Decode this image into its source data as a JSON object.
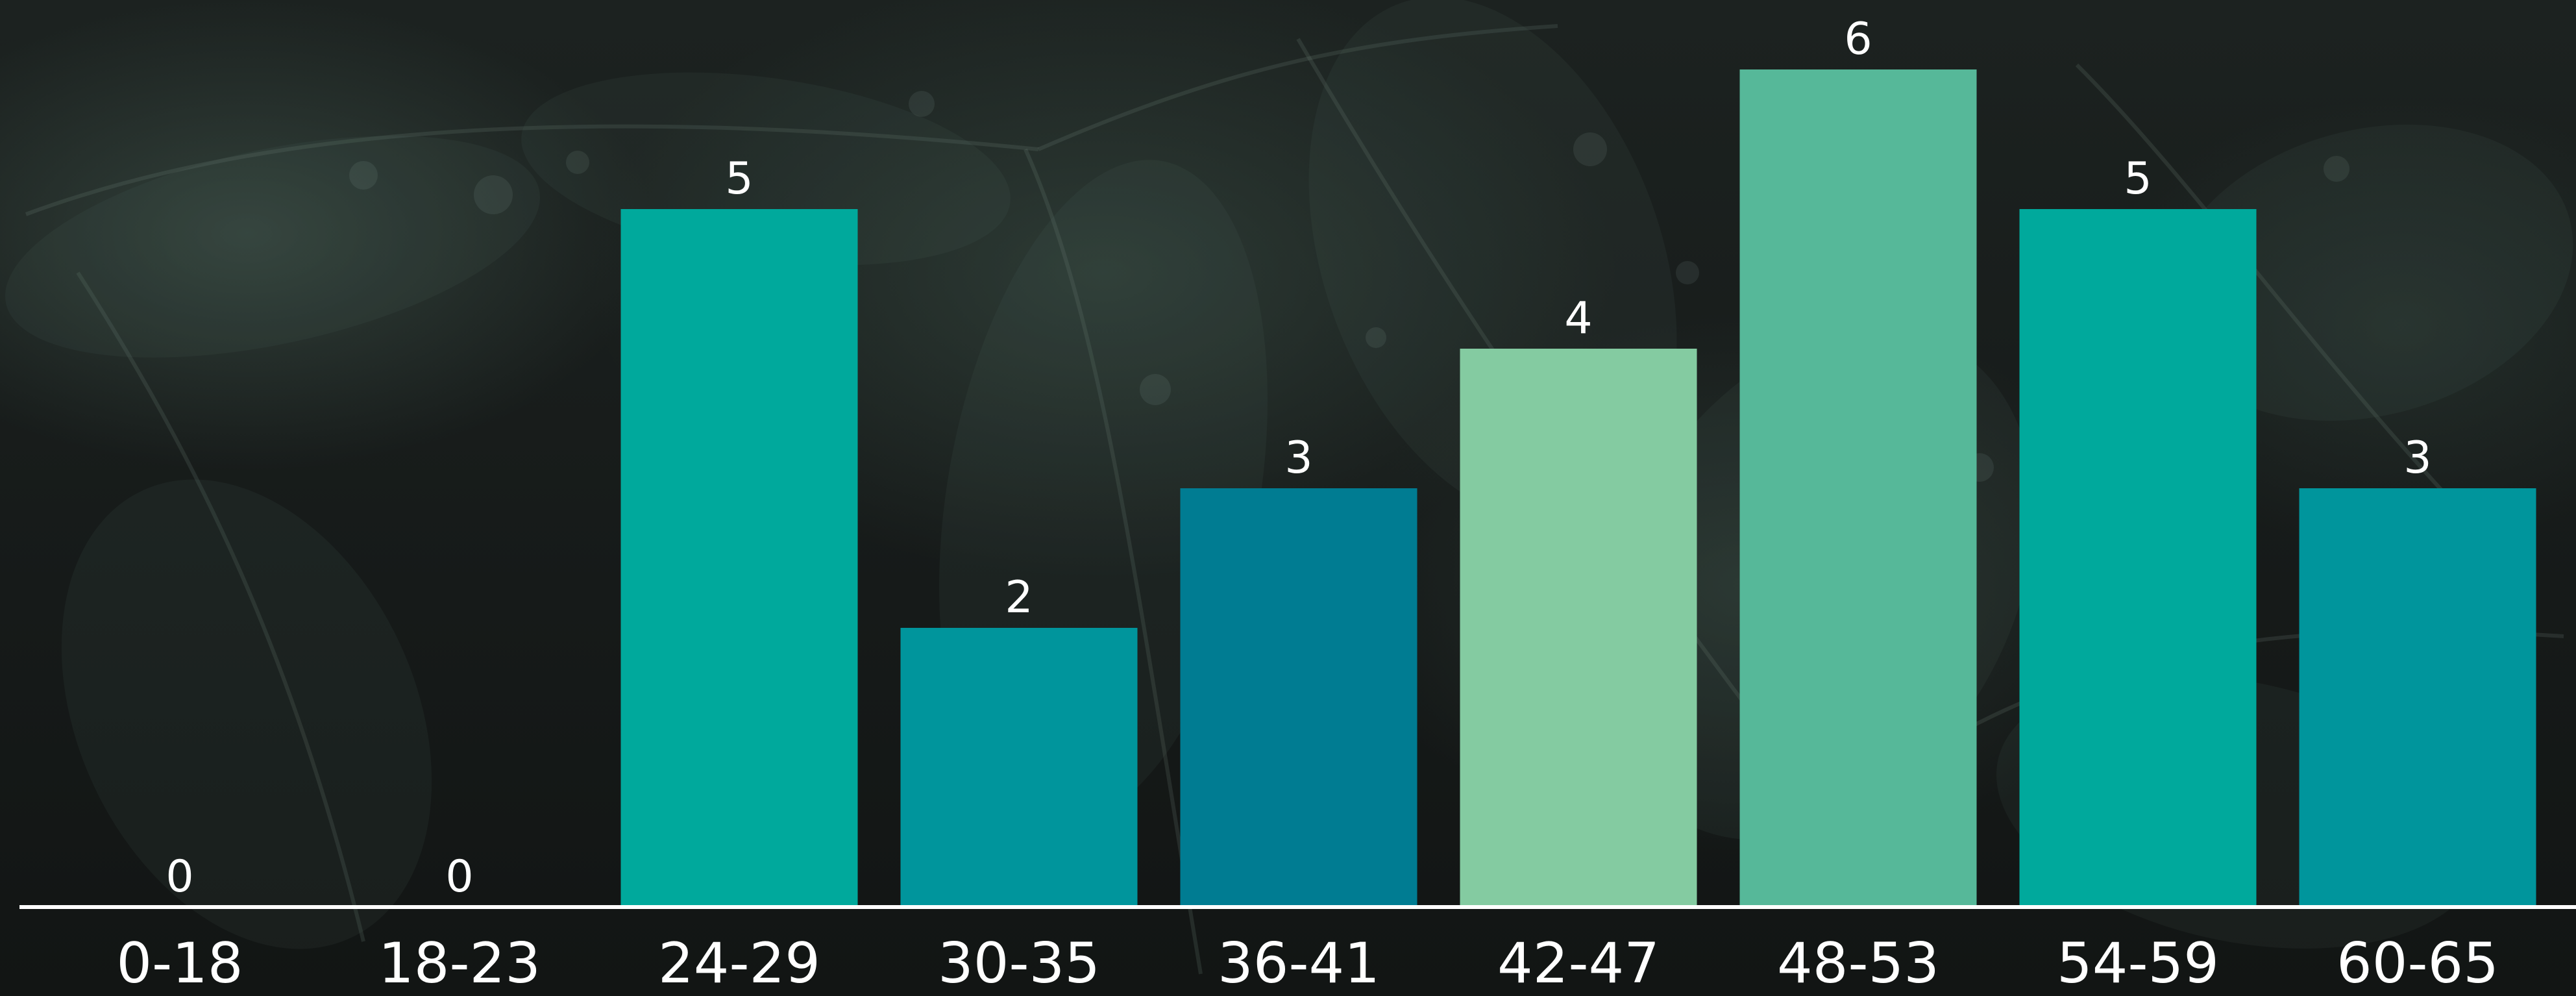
{
  "chart_data": {
    "type": "bar",
    "title": "",
    "xlabel": "",
    "ylabel": "",
    "categories": [
      "0-18",
      "18-23",
      "24-29",
      "30-35",
      "36-41",
      "42-47",
      "48-53",
      "54-59",
      "60-65"
    ],
    "values": [
      0,
      0,
      5,
      2,
      3,
      4,
      6,
      5,
      3
    ],
    "data_labels": [
      "0",
      "0",
      "5",
      "2",
      "3",
      "4",
      "6",
      "5",
      "3"
    ],
    "bar_colors": [
      "#00a99c",
      "#00a99c",
      "#00a99c",
      "#00959c",
      "#007c92",
      "#84cba1",
      "#56b899",
      "#00a99c",
      "#00959c"
    ],
    "ylim": [
      0,
      6
    ],
    "grid": false,
    "legend": "none",
    "baseline_color": "#ffffff"
  }
}
